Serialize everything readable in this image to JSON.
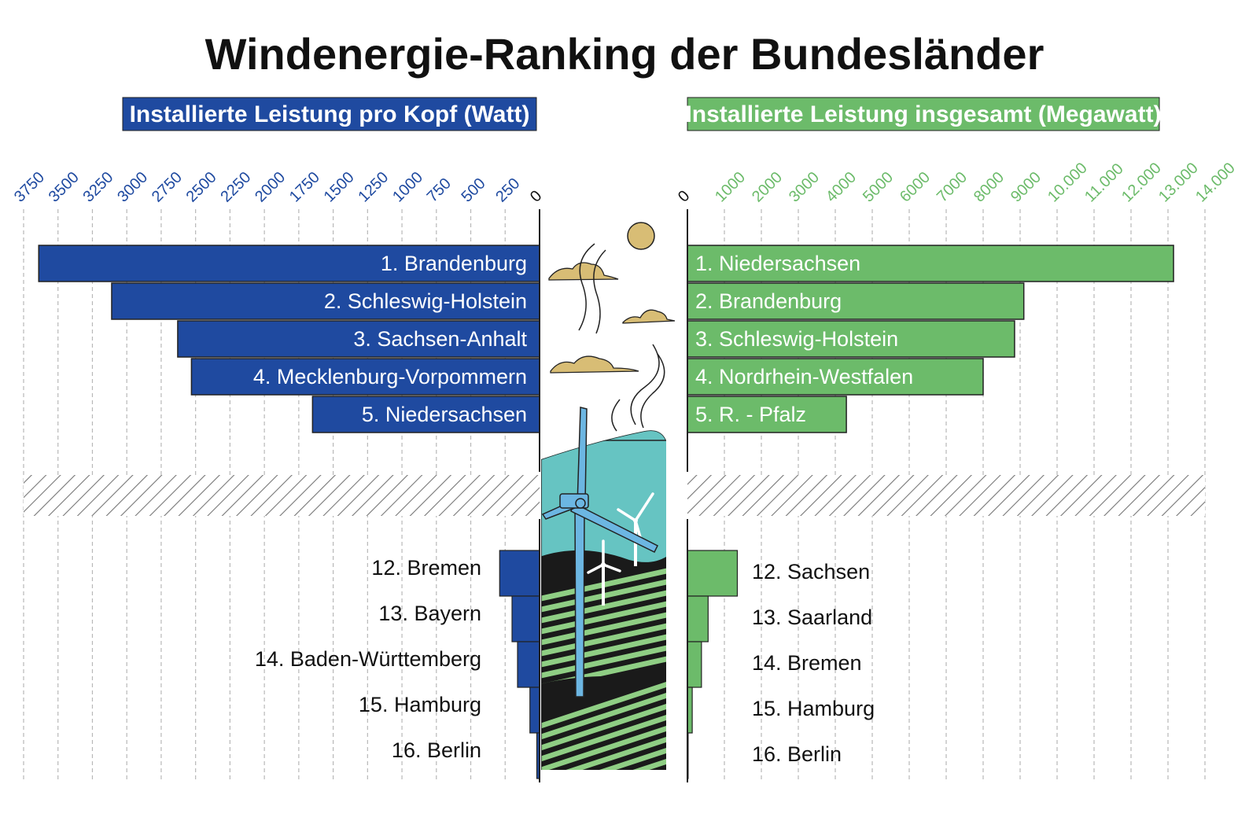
{
  "colors": {
    "blue": "#1f4aa0",
    "green": "#6cbb6a",
    "grid": "#b8b8b8",
    "sky": "#66c4c2",
    "cloud": "#d8bd75",
    "sun": "#d8bd75",
    "field_dark": "#1a1a1a",
    "field_stripe": "#8fce84"
  },
  "chart_data": {
    "title": "Windenergie-Ranking der Bundesländer",
    "left": {
      "type": "bar",
      "orientation": "horizontal",
      "direction": "leftward",
      "header": "Installierte Leistung pro Kopf (Watt)",
      "ticks": [
        0,
        250,
        500,
        750,
        1000,
        1250,
        1500,
        1750,
        2000,
        2250,
        2500,
        2750,
        3000,
        3250,
        3500,
        3750
      ],
      "tick_labels": [
        "0",
        "250",
        "500",
        "750",
        "1000",
        "1250",
        "1500",
        "1750",
        "2000",
        "2250",
        "2500",
        "2750",
        "3000",
        "3250",
        "3500",
        "3750"
      ],
      "xlim": [
        0,
        3750
      ],
      "top_bars": [
        {
          "rank": "1.",
          "name": "Brandenburg",
          "value": 3640
        },
        {
          "rank": "2.",
          "name": "Schleswig-Holstein",
          "value": 3110
        },
        {
          "rank": "3.",
          "name": "Sachsen-Anhalt",
          "value": 2630
        },
        {
          "rank": "4.",
          "name": "Mecklenburg-Vorpommern",
          "value": 2530
        },
        {
          "rank": "5.",
          "name": "Niedersachsen",
          "value": 1650
        }
      ],
      "bottom_bars": [
        {
          "rank": "12.",
          "name": "Bremen",
          "value": 290
        },
        {
          "rank": "13.",
          "name": "Bayern",
          "value": 200
        },
        {
          "rank": "14.",
          "name": "Baden-Württemberg",
          "value": 160
        },
        {
          "rank": "15.",
          "name": "Hamburg",
          "value": 70
        },
        {
          "rank": "16.",
          "name": "Berlin",
          "value": 20
        }
      ]
    },
    "right": {
      "type": "bar",
      "orientation": "horizontal",
      "direction": "rightward",
      "header": "Installierte Leistung insgesamt (Megawatt)",
      "ticks": [
        0,
        1000,
        2000,
        3000,
        4000,
        5000,
        6000,
        7000,
        8000,
        9000,
        10000,
        11000,
        12000,
        13000,
        14000
      ],
      "tick_labels": [
        "0",
        "1000",
        "2000",
        "3000",
        "4000",
        "5000",
        "6000",
        "7000",
        "8000",
        "9000",
        "10.000",
        "11.000",
        "12.000",
        "13.000",
        "14.000"
      ],
      "xlim": [
        0,
        14000
      ],
      "top_bars": [
        {
          "rank": "1.",
          "name": "Niedersachsen",
          "value": 13150
        },
        {
          "rank": "2.",
          "name": "Brandenburg",
          "value": 9100
        },
        {
          "rank": "3.",
          "name": "Schleswig-Holstein",
          "value": 8850
        },
        {
          "rank": "4.",
          "name": "Nordrhein-Westfalen",
          "value": 8000
        },
        {
          "rank": "5.",
          "name": "R. - Pfalz",
          "value": 4300
        }
      ],
      "bottom_bars": [
        {
          "rank": "12.",
          "name": "Sachsen",
          "value": 1350
        },
        {
          "rank": "13.",
          "name": "Saarland",
          "value": 560
        },
        {
          "rank": "14.",
          "name": "Bremen",
          "value": 380
        },
        {
          "rank": "15.",
          "name": "Hamburg",
          "value": 130
        },
        {
          "rank": "16.",
          "name": "Berlin",
          "value": 20
        }
      ]
    }
  }
}
